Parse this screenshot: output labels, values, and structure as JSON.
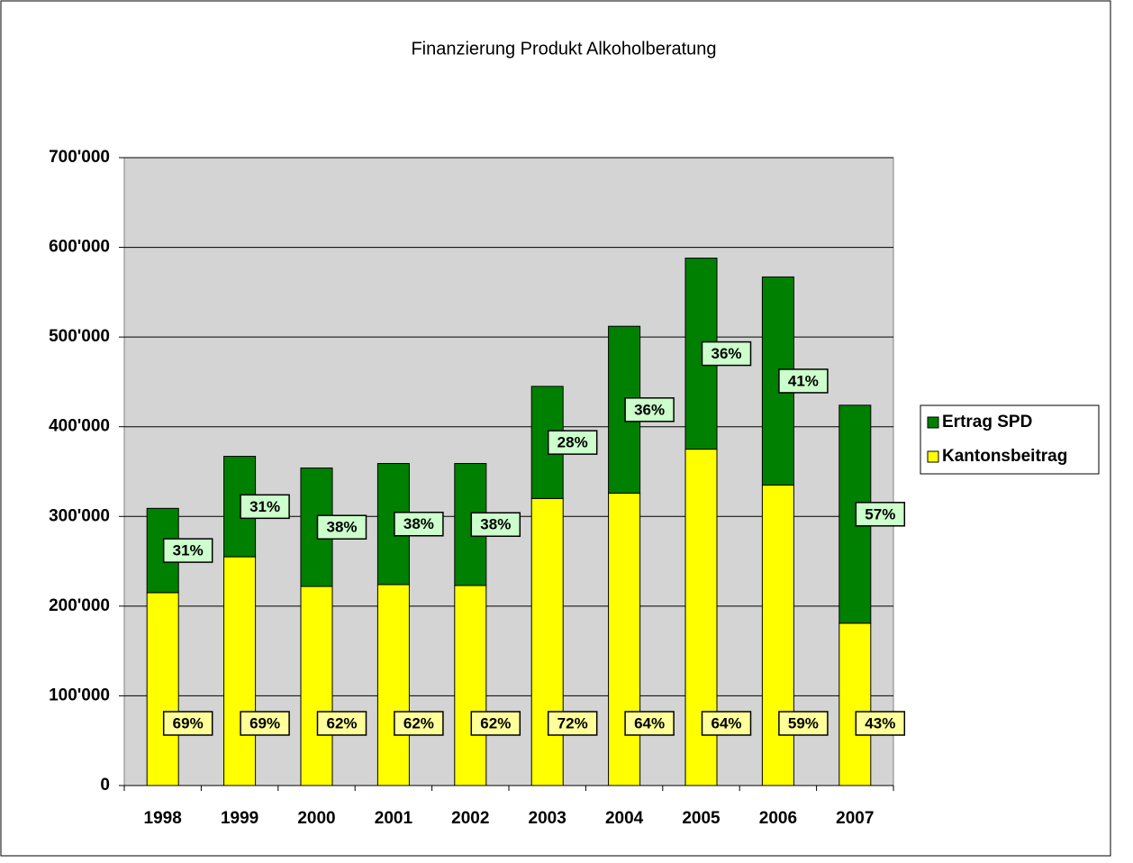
{
  "chart_data": {
    "type": "stacked_bar",
    "title": "Finanzierung Produkt Alkoholberatung",
    "categories": [
      "1998",
      "1999",
      "2000",
      "2001",
      "2002",
      "2003",
      "2004",
      "2005",
      "2006",
      "2007"
    ],
    "series": [
      {
        "name": "Kantonsbeitrag",
        "color": "#ffff00",
        "label_color": "#ffff99",
        "values": [
          215000,
          255000,
          222000,
          224000,
          223000,
          320000,
          326000,
          375000,
          335000,
          181000
        ],
        "share_labels": [
          "69%",
          "69%",
          "62%",
          "62%",
          "62%",
          "72%",
          "64%",
          "64%",
          "59%",
          "43%"
        ]
      },
      {
        "name": "Ertrag SPD",
        "color": "#008000",
        "label_color": "#ccffcc",
        "values": [
          94000,
          112000,
          132000,
          135000,
          136000,
          125000,
          186000,
          213000,
          232000,
          243000
        ],
        "share_labels": [
          "31%",
          "31%",
          "38%",
          "38%",
          "38%",
          "28%",
          "36%",
          "36%",
          "41%",
          "57%"
        ]
      }
    ],
    "ylim": [
      0,
      700000
    ],
    "yticks": [
      0,
      {
        "value": 100000,
        "label": "100'000"
      },
      {
        "value": 200000,
        "label": "200'000"
      },
      {
        "value": 300000,
        "label": "300'000"
      },
      {
        "value": 400000,
        "label": "400'000"
      },
      {
        "value": 500000,
        "label": "500'000"
      },
      {
        "value": 600000,
        "label": "600'000"
      },
      {
        "value": 700000,
        "label": "700'000"
      }
    ],
    "grid": true,
    "legend": "right"
  }
}
